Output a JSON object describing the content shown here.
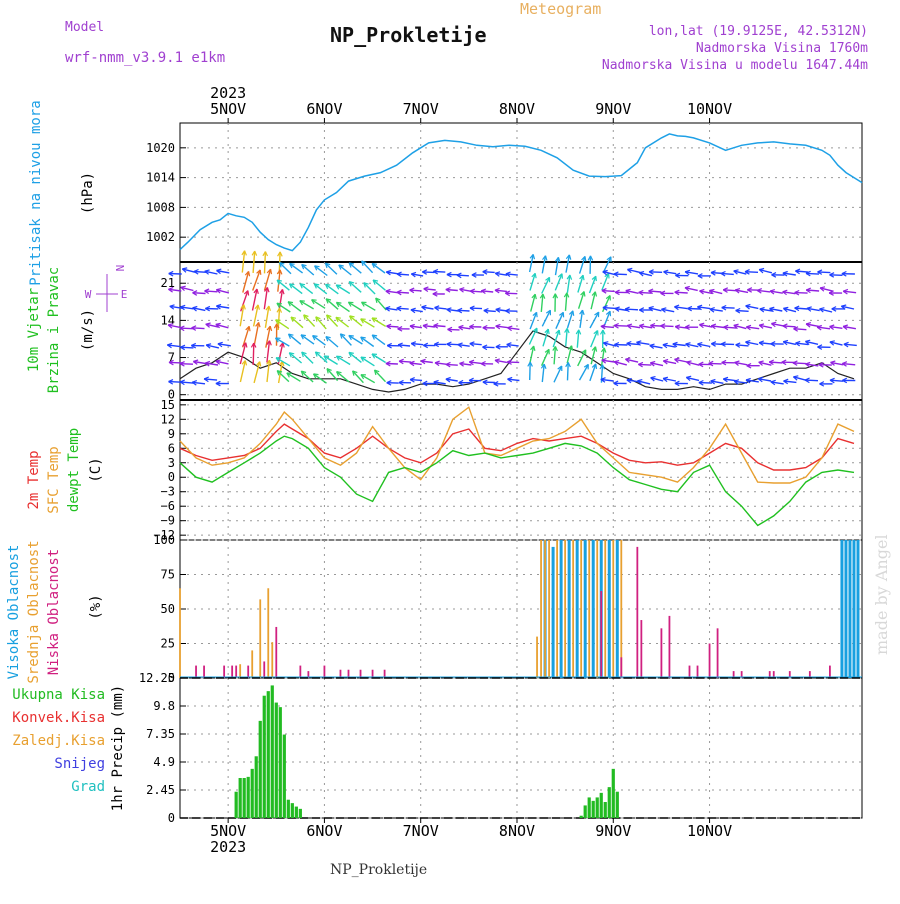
{
  "header": {
    "model_label": "Model",
    "model_name": "wrf-nmm_v3.9.1  e1km",
    "title": "NP_Prokletije",
    "chart_kind": "Meteogram",
    "lonlat": "lon,lat (19.9125E, 42.5312N)",
    "altitude": "Nadmorska Visina 1760m",
    "model_altitude": "Nadmorska Visina u modelu 1647.44m",
    "footer": "NP_Prokletije",
    "credit": "made by Angel"
  },
  "colors": {
    "pressure": "#1ea0e6",
    "temp_2m": "#e83030",
    "temp_sfc": "#e8a030",
    "dewpt": "#20c020",
    "cloud_high": "#18a0e0",
    "cloud_mid": "#e8a030",
    "cloud_low": "#d02080",
    "precip_total": "#22bb22",
    "wind_label": "#20c020",
    "axis": "#000000",
    "grid": "#999999"
  },
  "chart_data": [
    {
      "type": "line",
      "id": "pressure",
      "ylabel_left": "Pritisak na nivou mora",
      "unit": "(hPa)",
      "x_axis": "hours from 5NOV 00",
      "ylim": [
        997,
        1025
      ],
      "yticks": [
        "1002",
        "1008",
        "1014",
        "1020"
      ],
      "top_date_labels": [
        "5NOV",
        "6NOV",
        "7NOV",
        "8NOV",
        "9NOV",
        "10NOV"
      ],
      "top_year": "2023",
      "series": [
        {
          "values_x": [
            -12,
            -10,
            -7,
            -4,
            -2,
            0,
            2,
            4,
            6,
            8,
            10,
            12,
            14,
            16,
            18,
            20,
            22,
            24,
            27,
            30,
            34,
            38,
            42,
            46,
            50,
            54,
            58,
            62,
            66,
            70,
            74,
            78,
            82,
            86,
            90,
            94,
            98,
            102,
            104,
            108,
            110,
            112,
            114,
            116,
            120,
            124,
            128,
            132,
            136,
            140,
            144,
            148,
            150,
            152,
            154,
            156,
            158
          ],
          "values_y": [
            999.5,
            1001,
            1003.5,
            1005,
            1005.5,
            1006.8,
            1006.3,
            1006,
            1005,
            1003,
            1001.5,
            1000.5,
            999.8,
            999.3,
            1001,
            1004,
            1007.5,
            1009.5,
            1011,
            1013.3,
            1014.3,
            1015,
            1016.5,
            1019,
            1021,
            1021.5,
            1021.2,
            1020.5,
            1020.2,
            1020.5,
            1020.3,
            1019.5,
            1018,
            1015.5,
            1014.3,
            1014.2,
            1014.4,
            1017,
            1020,
            1022,
            1022.8,
            1022.4,
            1022.3,
            1022,
            1021,
            1019.5,
            1020.5,
            1021,
            1021.2,
            1020.8,
            1020.5,
            1019.5,
            1018.5,
            1016.5,
            1015,
            1014,
            1013
          ]
        }
      ]
    },
    {
      "type": "scatter",
      "id": "wind",
      "ylabel_left": "10m Vjetar Brzina i Pravac",
      "unit": "(m/s)",
      "direction_legend": [
        "N",
        "E",
        "W"
      ],
      "ylim": [
        -1,
        25
      ],
      "yticks": [
        "0",
        "7",
        "14",
        "21"
      ],
      "x_hours": [
        -12,
        -8,
        -4,
        0,
        4,
        8,
        12,
        16,
        20,
        24,
        28,
        32,
        36,
        40,
        44,
        48,
        52,
        56,
        60,
        64,
        68,
        72,
        76,
        80,
        84,
        88,
        92,
        96,
        100,
        104,
        108,
        112,
        116,
        120,
        124,
        128,
        132,
        136,
        140,
        144,
        148,
        152,
        156
      ],
      "speed": [
        3,
        5,
        6,
        8,
        7,
        5,
        6,
        4,
        3,
        3,
        3,
        2,
        1,
        0.5,
        1,
        2,
        2,
        1.5,
        2,
        3,
        4,
        8,
        12,
        11,
        9,
        8,
        6,
        4,
        3,
        1.5,
        1,
        1,
        1.5,
        1,
        2,
        2,
        3,
        4,
        5,
        5,
        6,
        4,
        3
      ]
    },
    {
      "type": "line",
      "id": "temperature",
      "ylabel_left": [
        "2m Temp",
        "SFC Temp",
        "dewpt Temp"
      ],
      "unit": "(C)",
      "ylim": [
        -13,
        16
      ],
      "yticks": [
        "15",
        "12",
        "9",
        "6",
        "3",
        "0",
        "−3",
        "−6",
        "−9",
        "−12"
      ],
      "x_hours": [
        -12,
        -8,
        -4,
        0,
        4,
        8,
        12,
        14,
        16,
        20,
        24,
        28,
        32,
        36,
        40,
        44,
        48,
        52,
        56,
        60,
        64,
        68,
        72,
        76,
        80,
        84,
        88,
        92,
        96,
        100,
        104,
        108,
        112,
        116,
        120,
        124,
        128,
        132,
        136,
        140,
        144,
        148,
        152,
        156
      ],
      "series": [
        {
          "name": "2m Temp",
          "values": [
            6,
            4.5,
            3.5,
            4,
            4.5,
            6,
            9.5,
            11,
            10,
            8,
            5,
            4,
            6,
            8.5,
            6,
            4,
            3,
            5,
            9,
            10,
            6,
            5.5,
            7,
            8,
            7.5,
            8,
            8.5,
            7,
            5,
            3.5,
            3,
            3.2,
            2.5,
            3,
            5,
            7,
            6,
            3,
            1.5,
            1.5,
            2,
            4,
            8,
            7
          ]
        },
        {
          "name": "SFC Temp",
          "values": [
            7.5,
            4,
            2.5,
            3,
            4,
            7,
            11,
            13.5,
            12,
            8,
            4,
            2.5,
            5,
            10.5,
            6,
            2,
            -0.5,
            4,
            12,
            14.5,
            5,
            4.5,
            6,
            7.5,
            8,
            9.5,
            12,
            7,
            4,
            1,
            0.5,
            0,
            -1,
            2,
            6,
            11,
            5,
            -1,
            -1.2,
            -1.2,
            0,
            4,
            11,
            9.5
          ]
        },
        {
          "name": "dewpt Temp",
          "values": [
            3,
            0,
            -1,
            1,
            3,
            5,
            7.5,
            8.5,
            8,
            6,
            2,
            0,
            -3.5,
            -5,
            1,
            2,
            1,
            3,
            5.5,
            4.5,
            5,
            4,
            4.5,
            5,
            6,
            7,
            6.5,
            5,
            2,
            -0.5,
            -1.5,
            -2.5,
            -3,
            1,
            2.5,
            -3,
            -6,
            -10,
            -8,
            -5,
            -1,
            1,
            1.5,
            1
          ]
        }
      ]
    },
    {
      "type": "bar",
      "id": "clouds",
      "ylabel_left": [
        "Visoka Oblacnost",
        "Srednja Oblacnost",
        "Niska Oblacnost"
      ],
      "unit": "(%)",
      "ylim": [
        0,
        100
      ],
      "yticks": [
        "0",
        "25",
        "50",
        "75",
        "100"
      ],
      "series": [
        {
          "name": "Visoka Oblacnost",
          "x_hours": [
            79,
            81,
            83,
            85,
            87,
            89,
            91,
            93,
            95,
            97,
            153,
            154,
            155,
            156,
            157
          ],
          "values": [
            100,
            95,
            100,
            100,
            100,
            100,
            100,
            100,
            100,
            100,
            100,
            100,
            100,
            100,
            100
          ]
        },
        {
          "name": "Srednja Oblacnost",
          "x_hours": [
            -12,
            3,
            6,
            8,
            10,
            11,
            77,
            78,
            79,
            80,
            82,
            84,
            86,
            88,
            90,
            92,
            94,
            96,
            98
          ],
          "values": [
            65,
            10,
            20,
            57,
            65,
            26,
            30,
            100,
            100,
            100,
            100,
            100,
            100,
            100,
            100,
            100,
            100,
            100,
            100
          ]
        },
        {
          "name": "Niska Oblacnost",
          "x_hours": [
            -8,
            -6,
            -1,
            1,
            2,
            5,
            9,
            12,
            18,
            20,
            24,
            28,
            30,
            33,
            36,
            39,
            93,
            98,
            102,
            103,
            108,
            110,
            115,
            117,
            120,
            122,
            126,
            128,
            135,
            136,
            140,
            145,
            150
          ],
          "values": [
            9,
            9,
            9,
            9,
            9,
            9,
            12,
            37,
            9,
            5,
            9,
            6,
            6,
            6,
            6,
            6,
            63,
            15,
            95,
            42,
            36,
            45,
            9,
            9,
            25,
            36,
            5,
            5,
            5,
            5,
            5,
            5,
            9
          ]
        }
      ]
    },
    {
      "type": "bar",
      "id": "precip",
      "ylabel_left": [
        "Ukupna Kisa",
        "Konvek.Kisa",
        "Zaledj.Kisa",
        "Snijeg",
        "Grad"
      ],
      "unit": "1hr Precip (mm)",
      "ylim": [
        0,
        12.25
      ],
      "yticks": [
        "0",
        "2.45",
        "4.9",
        "7.35",
        "9.8",
        "12.25"
      ],
      "bottom_date_labels": [
        "5NOV",
        "6NOV",
        "7NOV",
        "8NOV",
        "9NOV",
        "10NOV"
      ],
      "bottom_year": "2023",
      "series": [
        {
          "name": "Ukupna Kisa",
          "x_hours": [
            2,
            3,
            4,
            5,
            6,
            7,
            8,
            9,
            10,
            11,
            12,
            13,
            14,
            15,
            16,
            17,
            18,
            88,
            89,
            90,
            91,
            92,
            93,
            94,
            95,
            96,
            97
          ],
          "values": [
            2.3,
            3.5,
            3.5,
            3.6,
            4.3,
            5.4,
            8.5,
            10.7,
            11.1,
            11.6,
            10.1,
            9.7,
            7.3,
            1.6,
            1.3,
            1.0,
            0.8,
            0.2,
            1.1,
            1.8,
            1.5,
            1.8,
            2.2,
            1.4,
            2.7,
            4.3,
            2.3
          ]
        }
      ]
    }
  ]
}
